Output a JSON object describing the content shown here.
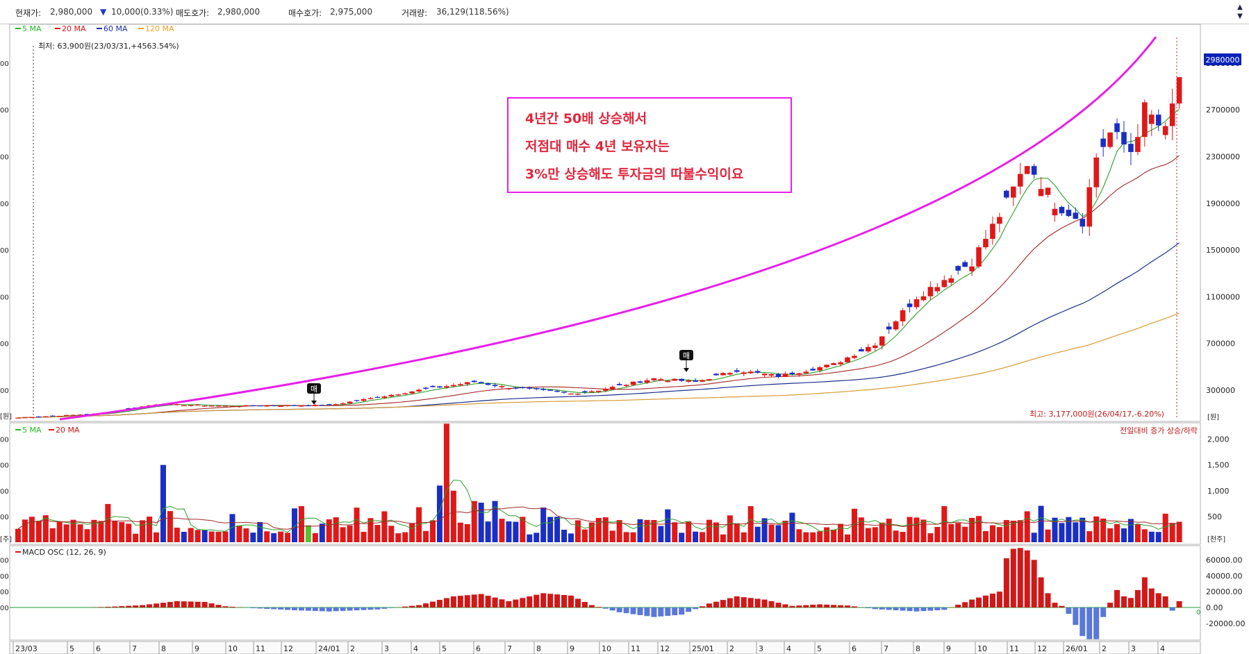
{
  "header": {
    "current_price_label": "현재가:",
    "current_price": "2,980,000",
    "change_arrow": "▼",
    "change": "10,000(0.33%)",
    "ask_label": "매도호가:",
    "ask": "2,980,000",
    "bid_label": "매수호가:",
    "bid": "2,975,000",
    "volume_label": "거래량:",
    "volume": "36,129(118.56%)"
  },
  "price_panel": {
    "legend": [
      {
        "label": "5 MA",
        "color": "#22bb22"
      },
      {
        "label": "20 MA",
        "color": "#dd1111"
      },
      {
        "label": "60 MA",
        "color": "#1a2ea6"
      },
      {
        "label": "120 MA",
        "color": "#f0a020"
      }
    ],
    "low_note": "최저: 63,900원(23/03/31,+4563.54%)",
    "high_note": "최고: 3,177,000원(26/04/17,-6.20%)",
    "price_tag": "2980000",
    "unit": "[원]",
    "left_ticks": [
      "00",
      "00",
      "00",
      "00",
      "00",
      "00",
      "00",
      "00"
    ],
    "left_unit": "[원]",
    "sell_marker": "매",
    "annotation_lines": [
      "4년간 50배 상승해서",
      "저점대 매수 4년 보유자는",
      "3%만 상승해도 투자금의 따불수익이요"
    ]
  },
  "volume_panel": {
    "legend": [
      {
        "label": "5 MA",
        "color": "#22bb22"
      },
      {
        "label": "20 MA",
        "color": "#dd1111"
      }
    ],
    "note": "전일대비 증가 상승/하락",
    "unit": "[천주]",
    "left_ticks": [
      "00",
      "00",
      "00",
      "00"
    ],
    "left_unit": "[주]"
  },
  "macd_panel": {
    "legend": [
      {
        "label": "MACD OSC (12, 26, 9)",
        "color": "#dd1111"
      }
    ],
    "zero_label": "0",
    "left_ticks": [
      "00",
      "00",
      "00",
      "00"
    ]
  },
  "x_axis": {
    "labels": [
      "23/03",
      "5",
      "6",
      "7",
      "8",
      "9",
      "10",
      "11",
      "12",
      "24/01",
      "2",
      "3",
      "4",
      "5",
      "6",
      "7",
      "8",
      "9",
      "10",
      "11",
      "12",
      "25/01",
      "2",
      "3",
      "4",
      "5",
      "6",
      "7",
      "8",
      "9",
      "10",
      "11",
      "12",
      "26/01",
      "2",
      "3",
      "4"
    ]
  },
  "chart_data": [
    {
      "type": "candlestick",
      "x_unit": "week",
      "y_axis": {
        "ticks": [
          300000,
          700000,
          1100000,
          1500000,
          1900000,
          2300000,
          2700000,
          3100000
        ],
        "ylim": [
          50000,
          3260000
        ]
      },
      "ohlc_anchor_closes": [
        [
          0,
          63900
        ],
        [
          12,
          100000
        ],
        [
          20,
          180000
        ],
        [
          30,
          165000
        ],
        [
          45,
          170000
        ],
        [
          58,
          300000
        ],
        [
          66,
          370000
        ],
        [
          70,
          330000
        ],
        [
          80,
          270000
        ],
        [
          84,
          300000
        ],
        [
          92,
          400000
        ],
        [
          98,
          370000
        ],
        [
          104,
          470000
        ],
        [
          110,
          420000
        ],
        [
          118,
          520000
        ],
        [
          124,
          700000
        ],
        [
          130,
          1100000
        ],
        [
          138,
          1400000
        ],
        [
          143,
          1900000
        ],
        [
          146,
          2250000
        ],
        [
          150,
          1900000
        ],
        [
          154,
          1750000
        ],
        [
          156,
          2300000
        ],
        [
          158,
          2500000
        ],
        [
          161,
          2350000
        ],
        [
          163,
          2700000
        ],
        [
          166,
          2500000
        ],
        [
          168,
          2950000
        ]
      ],
      "last_close": 2980000,
      "high": 3177000,
      "low": 63900
    },
    {
      "type": "bar",
      "name_hint": "volume",
      "y_axis": {
        "ticks": [
          500,
          1000,
          1500,
          2000
        ],
        "ylim": [
          0,
          2250
        ]
      },
      "notable_values": {
        "peak": 2300,
        "second_peak": 1600
      }
    },
    {
      "type": "bar",
      "name_hint": "MACD OSC (12, 26, 9)",
      "y_axis": {
        "ticks": [
          -20000,
          0,
          20000,
          40000,
          60000
        ],
        "ylim": [
          -40000,
          68000
        ]
      },
      "tick_labels": [
        "60000.00",
        "40000.00",
        "20000.00",
        "0.00",
        "-20000.00"
      ],
      "notable_values": {
        "max": 75000,
        "min": -40000
      }
    }
  ]
}
